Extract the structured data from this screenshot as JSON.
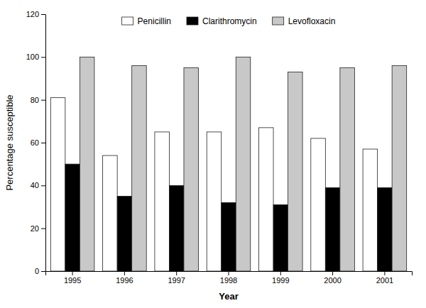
{
  "chart_data": {
    "type": "bar",
    "categories": [
      "1995",
      "1996",
      "1997",
      "1998",
      "1999",
      "2000",
      "2001"
    ],
    "series": [
      {
        "name": "Penicillin",
        "color": "white",
        "values": [
          81,
          54,
          65,
          65,
          67,
          62,
          57
        ]
      },
      {
        "name": "Clarithromycin",
        "color": "black",
        "values": [
          50,
          35,
          40,
          32,
          31,
          39,
          39
        ]
      },
      {
        "name": "Levofloxacin",
        "color": "#c8c8c8",
        "values": [
          100,
          96,
          95,
          100,
          93,
          95,
          96
        ]
      }
    ],
    "xlabel": "Year",
    "ylabel": "Percentage susceptible",
    "ylim": [
      0,
      120
    ],
    "yticks": [
      0,
      20,
      40,
      60,
      80,
      100,
      120
    ],
    "legend": "top"
  }
}
